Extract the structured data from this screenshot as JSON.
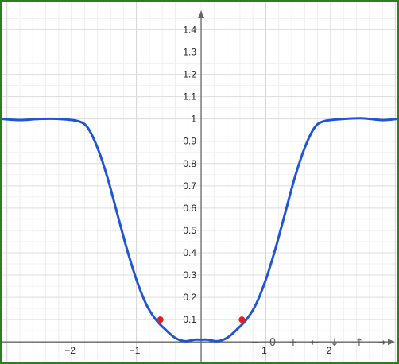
{
  "chart_data": {
    "type": "line",
    "title": "",
    "xlabel": "",
    "ylabel": "",
    "xlim": [
      -3.07,
      3.02
    ],
    "ylim": [
      -0.01,
      1.48
    ],
    "grid": true,
    "x_ticks": [
      -2,
      -1,
      1,
      2
    ],
    "x_tick_labels": [
      "−2",
      "−1",
      "1",
      "2"
    ],
    "y_ticks": [
      0.1,
      0.2,
      0.3,
      0.4,
      0.5,
      0.6,
      0.7,
      0.8,
      0.9,
      1,
      1.1,
      1.2,
      1.3,
      1.4
    ],
    "y_tick_labels": [
      "0.1",
      "0.2",
      "0.3",
      "0.4",
      "0.5",
      "0.6",
      "0.7",
      "0.8",
      "0.9",
      "1",
      "1.1",
      "1.2",
      "1.3",
      "1.4"
    ],
    "series": [
      {
        "color": "#1f55d6",
        "points": [
          [
            -3.07,
            1.0
          ],
          [
            -2.8,
            0.995
          ],
          [
            -2.5,
            1.0
          ],
          [
            -2.2,
            1.0
          ],
          [
            -1.9,
            0.99
          ],
          [
            -1.75,
            0.96
          ],
          [
            -1.6,
            0.87
          ],
          [
            -1.45,
            0.74
          ],
          [
            -1.3,
            0.58
          ],
          [
            -1.15,
            0.42
          ],
          [
            -1.0,
            0.28
          ],
          [
            -0.85,
            0.17
          ],
          [
            -0.7,
            0.1
          ],
          [
            -0.55,
            0.055
          ],
          [
            -0.4,
            0.018
          ],
          [
            -0.25,
            0.003
          ],
          [
            -0.1,
            0.01
          ],
          [
            0.0,
            0.01
          ],
          [
            0.1,
            0.01
          ],
          [
            0.25,
            0.003
          ],
          [
            0.4,
            0.018
          ],
          [
            0.55,
            0.055
          ],
          [
            0.7,
            0.1
          ],
          [
            0.85,
            0.17
          ],
          [
            1.0,
            0.28
          ],
          [
            1.15,
            0.42
          ],
          [
            1.3,
            0.58
          ],
          [
            1.45,
            0.74
          ],
          [
            1.6,
            0.87
          ],
          [
            1.75,
            0.96
          ],
          [
            1.9,
            0.99
          ],
          [
            2.2,
            1.0
          ],
          [
            2.5,
            1.003
          ],
          [
            2.8,
            0.995
          ],
          [
            3.02,
            1.0
          ]
        ]
      }
    ],
    "highlighted_points": [
      {
        "x": -0.63,
        "y": 0.1,
        "color": "#e02020"
      },
      {
        "x": 0.63,
        "y": 0.1,
        "color": "#e02020"
      }
    ]
  },
  "controls": {
    "labels": [
      "−",
      "0",
      "+",
      "←",
      "↓",
      "↑",
      "→"
    ]
  }
}
